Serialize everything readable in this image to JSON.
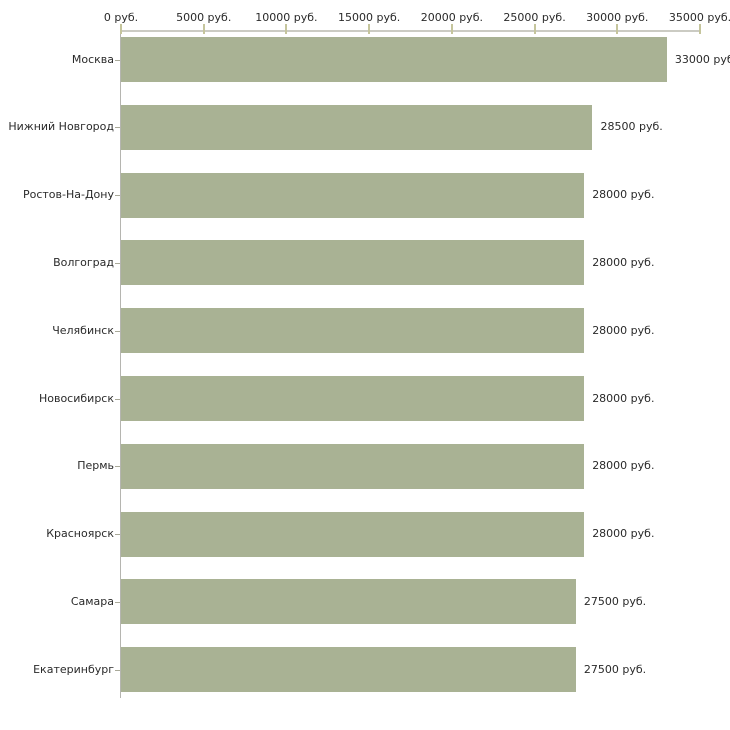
{
  "chart_data": {
    "type": "bar",
    "orientation": "horizontal",
    "title": "",
    "categories": [
      "Москва",
      "Нижний Новгород",
      "Ростов-На-Дону",
      "Волгоград",
      "Челябинск",
      "Новосибирск",
      "Пермь",
      "Красноярск",
      "Самара",
      "Екатеринбург"
    ],
    "values": [
      33000,
      28500,
      28000,
      28000,
      28000,
      28000,
      28000,
      28000,
      27500,
      27500
    ],
    "value_labels": [
      "33000 руб",
      "28500 руб.",
      "28000 руб.",
      "28000 руб.",
      "28000 руб.",
      "28000 руб.",
      "28000 руб.",
      "28000 руб.",
      "27500 руб.",
      "27500 руб."
    ],
    "x_axis": {
      "range": [
        0,
        35000
      ],
      "tick_values": [
        0,
        5000,
        10000,
        15000,
        20000,
        25000,
        30000,
        35000
      ],
      "tick_labels": [
        "0 руб.",
        "5000 руб.",
        "10000 руб.",
        "15000 руб.",
        "20000 руб.",
        "25000 руб.",
        "30000 руб.",
        "35000 руб."
      ]
    },
    "grid": "off",
    "legend": "none",
    "colors": {
      "bar": "#a9b294",
      "axis_line": "#cbcbc3",
      "y_axis_line": "#b5b5b0",
      "x_tick": "#c5c59c",
      "text": "#2a2a2a",
      "background": "#ffffff"
    }
  }
}
